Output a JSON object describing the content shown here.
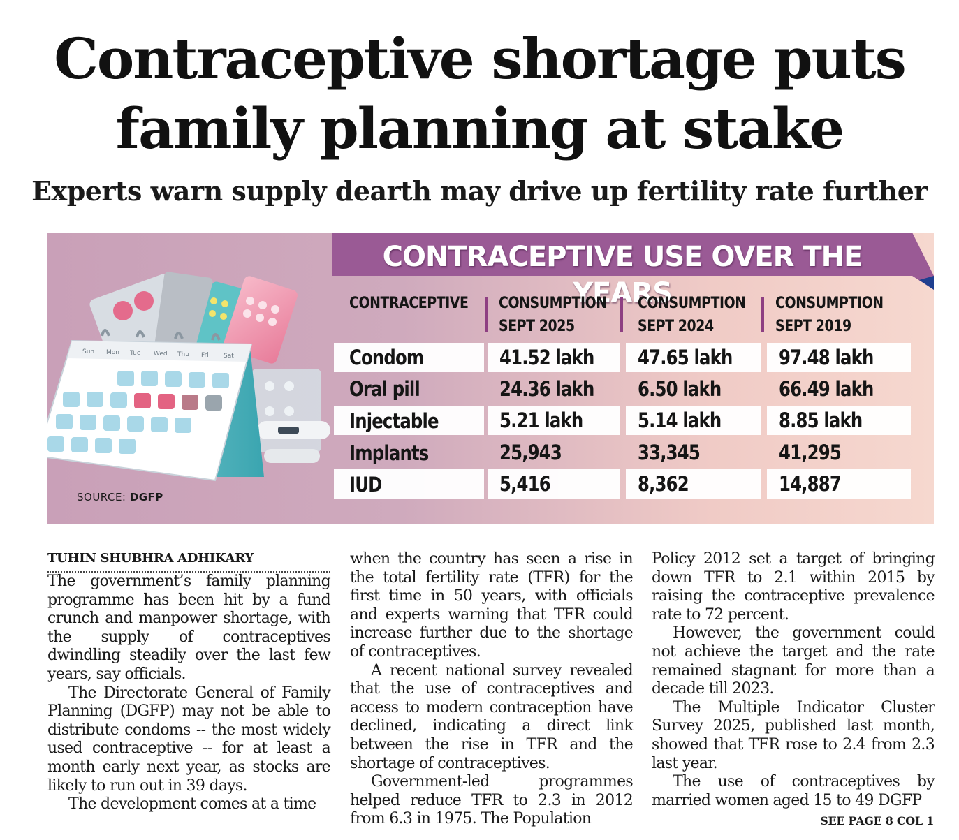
{
  "headline": {
    "line1": "Contraceptive shortage puts",
    "line2": "family planning at stake"
  },
  "subheadline": "Experts warn supply dearth may drive up fertility rate further",
  "infographic": {
    "title": "CONTRACEPTIVE USE OVER THE YEARS",
    "accent_color": "#9a5a95",
    "headers": {
      "contraceptive": "CONTRACEPTIVE",
      "c2025_line1": "CONSUMPTION",
      "c2025_line2": "SEPT 2025",
      "c2024_line1": "CONSUMPTION",
      "c2024_line2": "SEPT 2024",
      "c2019_line1": "CONSUMPTION",
      "c2019_line2": "SEPT 2019"
    },
    "rows": [
      {
        "name": "Condom",
        "sept2025": "41.52 lakh",
        "sept2024": "47.65 lakh",
        "sept2019": "97.48 lakh"
      },
      {
        "name": "Oral pill",
        "sept2025": "24.36 lakh",
        "sept2024": "6.50 lakh",
        "sept2019": "66.49 lakh"
      },
      {
        "name": "Injectable",
        "sept2025": "5.21 lakh",
        "sept2024": "5.14 lakh",
        "sept2019": "8.85 lakh"
      },
      {
        "name": "Implants",
        "sept2025": "25,943",
        "sept2024": "33,345",
        "sept2019": "41,295"
      },
      {
        "name": "IUD",
        "sept2025": "5,416",
        "sept2024": "8,362",
        "sept2019": "14,887"
      }
    ],
    "source_label": "SOURCE:",
    "source_name": "DGFP",
    "calendar_days": [
      "Sun",
      "Mon",
      "Tue",
      "Wed",
      "Thu",
      "Fri",
      "Sat"
    ]
  },
  "article": {
    "byline": "TUHIN SHUBHRA ADHIKARY",
    "col1": [
      "The government’s family planning programme has been hit by a fund crunch and manpower shortage, with the supply of contraceptives dwindling steadily over the last few years, say officials.",
      "The Directorate General of Family Planning (DGFP) may not be able to distribute condoms -- the most widely used contraceptive -- for at least a month early next year, as stocks are likely to run out in 39 days.",
      "The development comes at a time"
    ],
    "col2": [
      "when the country has seen a rise in the total fertility rate (TFR) for the first time in 50 years, with officials and experts warning that TFR could increase further due to the shortage of contraceptives.",
      "A recent national survey revealed that the use of contraceptives and access to modern contraception have declined, indicating a direct link between the rise in TFR and the shortage of contraceptives.",
      "Government-led programmes helped reduce TFR to 2.3 in 2012 from 6.3 in 1975. The Population"
    ],
    "col3": [
      "Policy 2012 set a target of bringing down TFR to 2.1 within 2015 by raising the contraceptive prevalence rate to 72 percent.",
      "However, the government could not achieve the target and the rate remained stagnant for more than a decade till 2023.",
      "The Multiple Indicator Cluster Survey 2025, published last month, showed that TFR rose to 2.4 from 2.3 last year.",
      "The use of contraceptives by married women aged 15 to 49 DGFP"
    ],
    "continuation": "SEE PAGE 8 COL 1"
  }
}
